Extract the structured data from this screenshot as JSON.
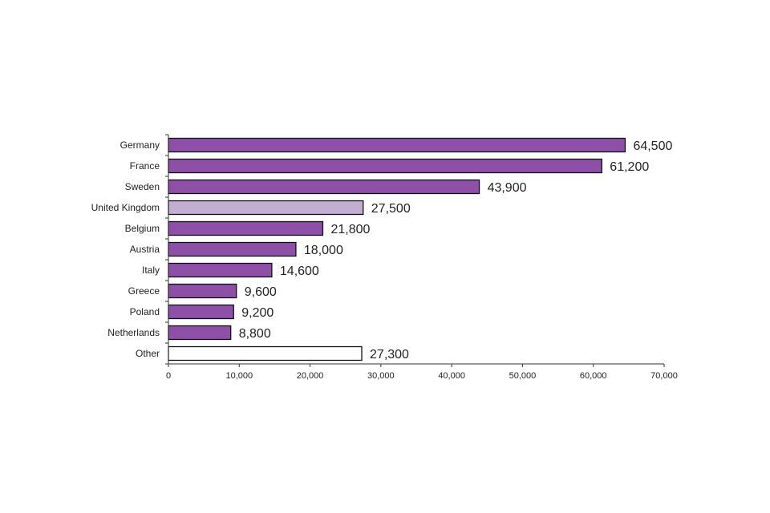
{
  "chart_data": {
    "type": "bar",
    "orientation": "horizontal",
    "title": "",
    "xlabel": "",
    "ylabel": "",
    "categories": [
      "Germany",
      "France",
      "Sweden",
      "United Kingdom",
      "Belgium",
      "Austria",
      "Italy",
      "Greece",
      "Poland",
      "Netherlands",
      "Other"
    ],
    "values": [
      64500,
      61200,
      43900,
      27500,
      21800,
      18000,
      14600,
      9600,
      9200,
      8800,
      27300
    ],
    "value_labels": [
      "64,500",
      "61,200",
      "43,900",
      "27,500",
      "21,800",
      "18,000",
      "14,600",
      "9,600",
      "9,200",
      "8,800",
      "27,300"
    ],
    "xlim": [
      0,
      70000
    ],
    "xticks": [
      0,
      10000,
      20000,
      30000,
      40000,
      50000,
      60000,
      70000
    ],
    "xtick_labels": [
      "0",
      "10,000",
      "20,000",
      "30,000",
      "40,000",
      "50,000",
      "60,000",
      "70,000"
    ],
    "grid": false,
    "legend": "none",
    "colors": {
      "default": "#8e4fa6",
      "highlight": "#c2aed1",
      "other": "#ffffff",
      "outline": "#111111",
      "axis": "#333333"
    },
    "bar_color_keys": [
      "default",
      "default",
      "default",
      "highlight",
      "default",
      "default",
      "default",
      "default",
      "default",
      "default",
      "other"
    ]
  }
}
